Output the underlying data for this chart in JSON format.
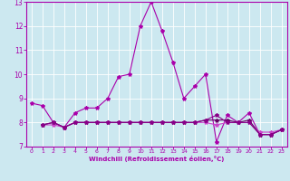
{
  "xlabel": "Windchill (Refroidissement éolien,°C)",
  "xlim": [
    -0.5,
    23.5
  ],
  "ylim": [
    7,
    13
  ],
  "yticks": [
    7,
    8,
    9,
    10,
    11,
    12,
    13
  ],
  "xticks": [
    0,
    1,
    2,
    3,
    4,
    5,
    6,
    7,
    8,
    9,
    10,
    11,
    12,
    13,
    14,
    15,
    16,
    17,
    18,
    19,
    20,
    21,
    22,
    23
  ],
  "background_color": "#cce8f0",
  "line_color1": "#aa00aa",
  "line_color2": "#cc44cc",
  "line_color3": "#660066",
  "line_color4": "#880088",
  "grid_color": "#ffffff",
  "line1_x": [
    0,
    1,
    2,
    3,
    4,
    5,
    6,
    7,
    8,
    9,
    10,
    11,
    12,
    13,
    14,
    15,
    16,
    17,
    18,
    19,
    20,
    21,
    22,
    23
  ],
  "line1_y": [
    8.8,
    8.7,
    8.0,
    7.8,
    8.4,
    8.6,
    8.6,
    9.0,
    9.9,
    10.0,
    12.0,
    13.0,
    11.8,
    10.5,
    9.0,
    9.5,
    10.0,
    7.2,
    8.3,
    8.0,
    8.4,
    7.5,
    7.5,
    7.7
  ],
  "line2_x": [
    1,
    2,
    3,
    4,
    5,
    6,
    7,
    8,
    9,
    10,
    11,
    12,
    13,
    14,
    15,
    16,
    17,
    18,
    19,
    20,
    21,
    22,
    23
  ],
  "line2_y": [
    7.9,
    7.9,
    7.8,
    8.0,
    8.0,
    8.0,
    8.0,
    8.0,
    8.0,
    8.0,
    8.0,
    8.0,
    8.0,
    8.0,
    8.0,
    8.0,
    7.9,
    8.0,
    8.0,
    8.0,
    7.6,
    7.6,
    7.7
  ],
  "line3_x": [
    1,
    2,
    3,
    4,
    5,
    6,
    7,
    8,
    9,
    10,
    11,
    12,
    13,
    14,
    15,
    16,
    17,
    18,
    19,
    20,
    21,
    22,
    23
  ],
  "line3_y": [
    7.9,
    8.0,
    7.8,
    8.0,
    8.0,
    8.0,
    8.0,
    8.0,
    8.0,
    8.0,
    8.0,
    8.0,
    8.0,
    8.0,
    8.0,
    8.1,
    8.1,
    8.1,
    8.0,
    8.1,
    7.5,
    7.5,
    7.7
  ],
  "line4_x": [
    1,
    2,
    3,
    4,
    5,
    6,
    7,
    8,
    9,
    10,
    11,
    12,
    13,
    14,
    15,
    16,
    17,
    18,
    19,
    20,
    21,
    22,
    23
  ],
  "line4_y": [
    7.9,
    8.0,
    7.8,
    8.0,
    8.0,
    8.0,
    8.0,
    8.0,
    8.0,
    8.0,
    8.0,
    8.0,
    8.0,
    8.0,
    8.0,
    8.1,
    8.3,
    8.0,
    8.0,
    8.0,
    7.5,
    7.5,
    7.7
  ]
}
